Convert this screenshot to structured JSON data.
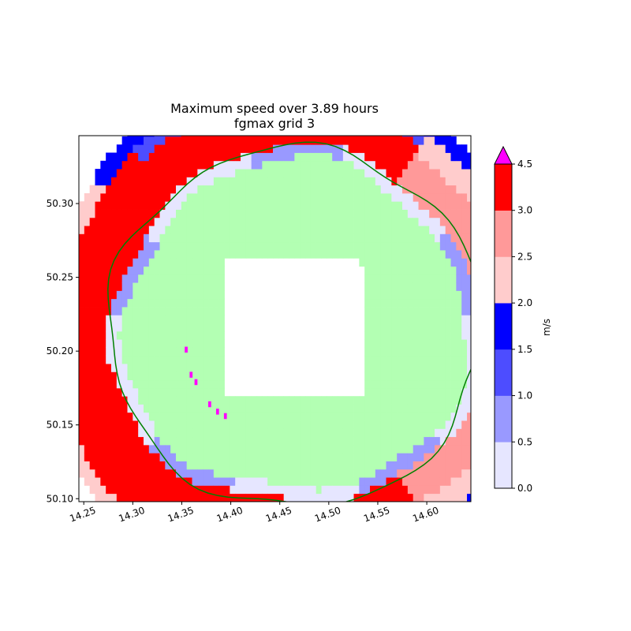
{
  "chart_data": {
    "type": "heatmap",
    "title": "Maximum speed over 3.89 hours",
    "subtitle": "fgmax grid 3",
    "xlabel": "",
    "ylabel": "",
    "xlim": [
      14.245,
      14.645
    ],
    "ylim": [
      50.098,
      50.346
    ],
    "xticks": [
      "14.25",
      "14.30",
      "14.35",
      "14.40",
      "14.45",
      "14.50",
      "14.55",
      "14.60"
    ],
    "yticks": [
      "50.10",
      "50.15",
      "50.20",
      "50.25",
      "50.30"
    ],
    "grid": false,
    "colorbar": {
      "label": "m/s",
      "extend": "max",
      "over_color": "#ff00ff",
      "levels": [
        0.0,
        0.5,
        1.0,
        1.5,
        2.0,
        2.5,
        3.0,
        4.5
      ],
      "tick_labels": [
        "0.0",
        "0.5",
        "1.0",
        "1.5",
        "2.0",
        "2.5",
        "3.0",
        "4.5"
      ],
      "colors": [
        "#e6e6ff",
        "#9999ff",
        "#4d4dff",
        "#0000ff",
        "#ffcccc",
        "#ff9999",
        "#ff0000"
      ]
    },
    "field": {
      "center": [
        14.466,
        50.216
      ],
      "dx": 0.0055,
      "dy": 0.0055,
      "dry_color": "#b3ffb3",
      "rings": [
        {
          "r_min": 0.0,
          "r_max": 0.062,
          "color": "white"
        },
        {
          "r_min": 0.062,
          "r_max": 0.112,
          "color": "#b3ffb3"
        },
        {
          "r_min": 0.112,
          "r_max": 0.12,
          "color": "#9999ff"
        },
        {
          "r_min": 0.12,
          "r_max": 0.16,
          "color": "#ff0000"
        },
        {
          "r_min": 0.16,
          "r_max": 0.168,
          "color": "#ffcccc"
        }
      ],
      "outer_radius": 0.17,
      "shoreline_radius": 0.122,
      "shoreline_color": "#008000",
      "over_cells": [
        [
          14.353,
          50.199
        ],
        [
          14.358,
          50.182
        ],
        [
          14.363,
          50.177
        ],
        [
          14.377,
          50.162
        ],
        [
          14.385,
          50.157
        ],
        [
          14.393,
          50.154
        ]
      ]
    }
  }
}
